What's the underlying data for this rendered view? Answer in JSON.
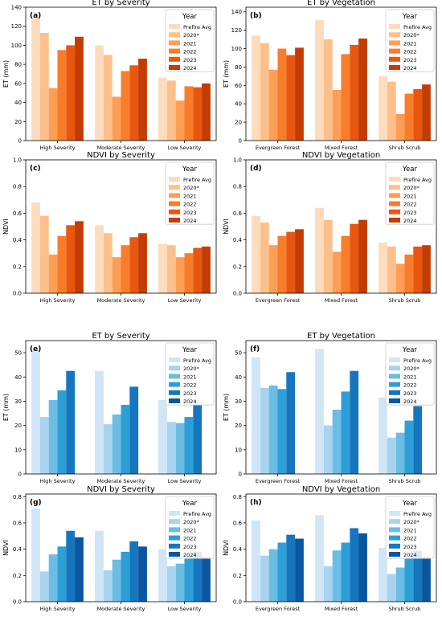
{
  "figure": {
    "legend_title": "Year",
    "legend_labels": [
      "Prefire Avg",
      "2020*",
      "2021",
      "2022",
      "2023",
      "2024"
    ],
    "palettes": {
      "orange": [
        "#fcdcbd",
        "#fdc08c",
        "#fd9e54",
        "#f87d2b",
        "#e85610",
        "#c23c03"
      ],
      "blue": [
        "#d0e6f6",
        "#a7d3ee",
        "#6cbde3",
        "#2d9fd6",
        "#1576bd",
        "#0a56a0"
      ]
    }
  },
  "chart_data": [
    {
      "type": "bar",
      "panel": "(a)",
      "title": "ET by Severity",
      "ylabel": "ET (mm)",
      "palette": "orange",
      "ylim": [
        0,
        140
      ],
      "yticks": [
        0,
        20,
        40,
        60,
        80,
        100,
        120,
        140
      ],
      "categories": [
        "High Severity",
        "Moderate Severity",
        "Low Severity"
      ],
      "series": [
        {
          "name": "Prefire Avg",
          "values": [
            129,
            100,
            66
          ]
        },
        {
          "name": "2020*",
          "values": [
            113,
            90,
            63
          ]
        },
        {
          "name": "2021",
          "values": [
            55,
            46,
            42
          ]
        },
        {
          "name": "2022",
          "values": [
            95,
            73,
            57
          ]
        },
        {
          "name": "2023",
          "values": [
            100,
            79,
            56
          ]
        },
        {
          "name": "2024",
          "values": [
            109,
            86,
            60
          ]
        }
      ]
    },
    {
      "type": "bar",
      "panel": "(b)",
      "title": "ET by Vegetation",
      "ylabel": "ET (mm)",
      "palette": "orange",
      "ylim": [
        0,
        145
      ],
      "yticks": [
        0,
        20,
        40,
        60,
        80,
        100,
        120,
        140
      ],
      "categories": [
        "Evergreen Forest",
        "Mixed Forest",
        "Shrub Scrub"
      ],
      "series": [
        {
          "name": "Prefire Avg",
          "values": [
            114,
            131,
            70
          ]
        },
        {
          "name": "2020*",
          "values": [
            106,
            110,
            64
          ]
        },
        {
          "name": "2021",
          "values": [
            77,
            55,
            29
          ]
        },
        {
          "name": "2022",
          "values": [
            100,
            94,
            51
          ]
        },
        {
          "name": "2023",
          "values": [
            93,
            104,
            56
          ]
        },
        {
          "name": "2024",
          "values": [
            101,
            111,
            61
          ]
        }
      ]
    },
    {
      "type": "bar",
      "panel": "(c)",
      "title": "NDVI by Severity",
      "ylabel": "NDVI",
      "palette": "orange",
      "ylim": [
        0,
        1.0
      ],
      "yticks": [
        0.0,
        0.2,
        0.4,
        0.6,
        0.8,
        1.0
      ],
      "categories": [
        "High Severity",
        "Moderate Severity",
        "Low Severity"
      ],
      "series": [
        {
          "name": "Prefire Avg",
          "values": [
            0.68,
            0.51,
            0.37
          ]
        },
        {
          "name": "2020*",
          "values": [
            0.58,
            0.45,
            0.36
          ]
        },
        {
          "name": "2021",
          "values": [
            0.29,
            0.27,
            0.27
          ]
        },
        {
          "name": "2022",
          "values": [
            0.43,
            0.36,
            0.3
          ]
        },
        {
          "name": "2023",
          "values": [
            0.51,
            0.42,
            0.34
          ]
        },
        {
          "name": "2024",
          "values": [
            0.54,
            0.45,
            0.35
          ]
        }
      ]
    },
    {
      "type": "bar",
      "panel": "(d)",
      "title": "NDVI by Vegetation",
      "ylabel": "NDVI",
      "palette": "orange",
      "ylim": [
        0,
        1.0
      ],
      "yticks": [
        0.0,
        0.2,
        0.4,
        0.6,
        0.8,
        1.0
      ],
      "categories": [
        "Evergreen Forest",
        "Mixed Forest",
        "Shrub Scrub"
      ],
      "series": [
        {
          "name": "Prefire Avg",
          "values": [
            0.58,
            0.64,
            0.38
          ]
        },
        {
          "name": "2020*",
          "values": [
            0.53,
            0.55,
            0.35
          ]
        },
        {
          "name": "2021",
          "values": [
            0.36,
            0.31,
            0.22
          ]
        },
        {
          "name": "2022",
          "values": [
            0.43,
            0.43,
            0.29
          ]
        },
        {
          "name": "2023",
          "values": [
            0.46,
            0.52,
            0.35
          ]
        },
        {
          "name": "2024",
          "values": [
            0.48,
            0.55,
            0.36
          ]
        }
      ]
    },
    {
      "type": "bar",
      "panel": "(e)",
      "title": "ET by Severity",
      "ylabel": "ET (mm)",
      "palette": "blue",
      "ylim": [
        0,
        55
      ],
      "yticks": [
        0,
        10,
        20,
        30,
        40,
        50
      ],
      "categories": [
        "High Severity",
        "Moderate Severity",
        "Low Severity"
      ],
      "series": [
        {
          "name": "Prefire Avg",
          "values": [
            51.0,
            42.5,
            30.5
          ]
        },
        {
          "name": "2020*",
          "values": [
            23.5,
            20.5,
            21.5
          ]
        },
        {
          "name": "2021",
          "values": [
            30.5,
            24.5,
            21.0
          ]
        },
        {
          "name": "2022",
          "values": [
            34.5,
            28.5,
            23.5
          ]
        },
        {
          "name": "2023",
          "values": [
            42.5,
            36.0,
            28.5
          ]
        },
        {
          "name": "2024",
          "values": [
            0,
            0,
            0
          ]
        }
      ]
    },
    {
      "type": "bar",
      "panel": "(f)",
      "title": "ET by Vegetation",
      "ylabel": "ET (mm)",
      "palette": "blue",
      "ylim": [
        0,
        55
      ],
      "yticks": [
        0,
        10,
        20,
        30,
        40,
        50
      ],
      "categories": [
        "Evergreen Forest",
        "Mixed Forest",
        "Shrub Scrub"
      ],
      "series": [
        {
          "name": "Prefire Avg",
          "values": [
            48.0,
            51.5,
            31.5
          ]
        },
        {
          "name": "2020*",
          "values": [
            35.5,
            20.0,
            15.0
          ]
        },
        {
          "name": "2021",
          "values": [
            36.5,
            26.5,
            17.0
          ]
        },
        {
          "name": "2022",
          "values": [
            35.0,
            34.0,
            22.0
          ]
        },
        {
          "name": "2023",
          "values": [
            42.0,
            42.5,
            28.0
          ]
        },
        {
          "name": "2024",
          "values": [
            0,
            0,
            0
          ]
        }
      ]
    },
    {
      "type": "bar",
      "panel": "(g)",
      "title": "NDVI by Severity",
      "ylabel": "NDVI",
      "palette": "blue",
      "ylim": [
        0,
        0.82
      ],
      "yticks": [
        0.0,
        0.2,
        0.4,
        0.6,
        0.8
      ],
      "categories": [
        "High Severity",
        "Moderate Severity",
        "Low Severity"
      ],
      "series": [
        {
          "name": "Prefire Avg",
          "values": [
            0.71,
            0.54,
            0.4
          ]
        },
        {
          "name": "2020*",
          "values": [
            0.23,
            0.24,
            0.27
          ]
        },
        {
          "name": "2021",
          "values": [
            0.36,
            0.32,
            0.29
          ]
        },
        {
          "name": "2022",
          "values": [
            0.42,
            0.38,
            0.35
          ]
        },
        {
          "name": "2023",
          "values": [
            0.54,
            0.46,
            0.38
          ]
        },
        {
          "name": "2024",
          "values": [
            0.49,
            0.42,
            0.34
          ]
        }
      ]
    },
    {
      "type": "bar",
      "panel": "(h)",
      "title": "NDVI by Vegetation",
      "ylabel": "NDVI",
      "palette": "blue",
      "ylim": [
        0,
        0.82
      ],
      "yticks": [
        0.0,
        0.2,
        0.4,
        0.6,
        0.8
      ],
      "categories": [
        "Evergreen Forest",
        "Mixed Forest",
        "Shrub Scrub"
      ],
      "series": [
        {
          "name": "Prefire Avg",
          "values": [
            0.62,
            0.66,
            0.41
          ]
        },
        {
          "name": "2020*",
          "values": [
            0.35,
            0.27,
            0.21
          ]
        },
        {
          "name": "2021",
          "values": [
            0.4,
            0.39,
            0.26
          ]
        },
        {
          "name": "2022",
          "values": [
            0.45,
            0.45,
            0.33
          ]
        },
        {
          "name": "2023",
          "values": [
            0.51,
            0.56,
            0.39
          ]
        },
        {
          "name": "2024",
          "values": [
            0.48,
            0.52,
            0.34
          ]
        }
      ]
    }
  ]
}
